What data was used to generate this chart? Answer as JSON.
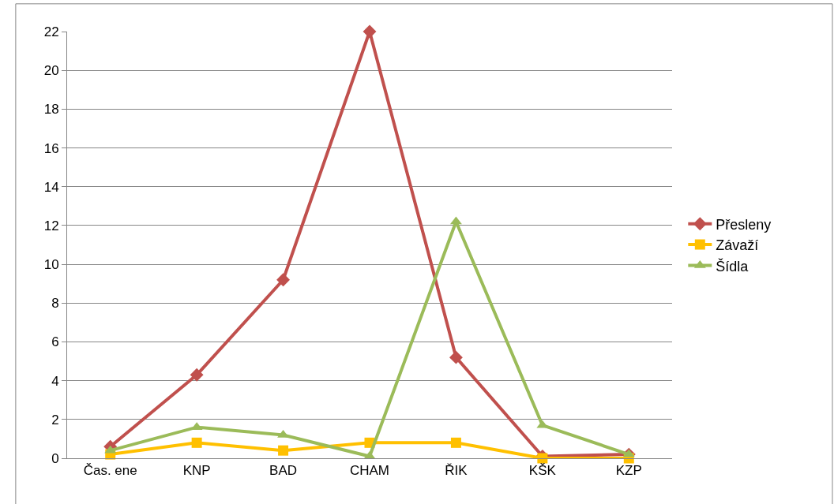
{
  "chart_data": {
    "type": "line",
    "categories": [
      "Čas. ene",
      "KNP",
      "BAD",
      "CHAM",
      "ŘIK",
      "KŠK",
      "KZP"
    ],
    "series": [
      {
        "name": "Přesleny",
        "color": "#c0504d",
        "marker": "diamond",
        "values": [
          0.6,
          4.3,
          9.2,
          22,
          5.2,
          0.1,
          0.2
        ]
      },
      {
        "name": "Závaží",
        "color": "#ffc000",
        "marker": "square",
        "values": [
          0.2,
          0.8,
          0.4,
          0.8,
          0.8,
          0,
          0
        ]
      },
      {
        "name": "Šídla",
        "color": "#9bbb59",
        "marker": "triangle",
        "values": [
          0.4,
          1.6,
          1.2,
          0.1,
          12.2,
          1.7,
          0.2
        ]
      }
    ],
    "ylim": [
      0,
      22
    ],
    "yticks": [
      0,
      2,
      4,
      6,
      8,
      10,
      12,
      14,
      16,
      18,
      20,
      22
    ],
    "grid": "y",
    "legend": "right",
    "line_style": "solid"
  }
}
